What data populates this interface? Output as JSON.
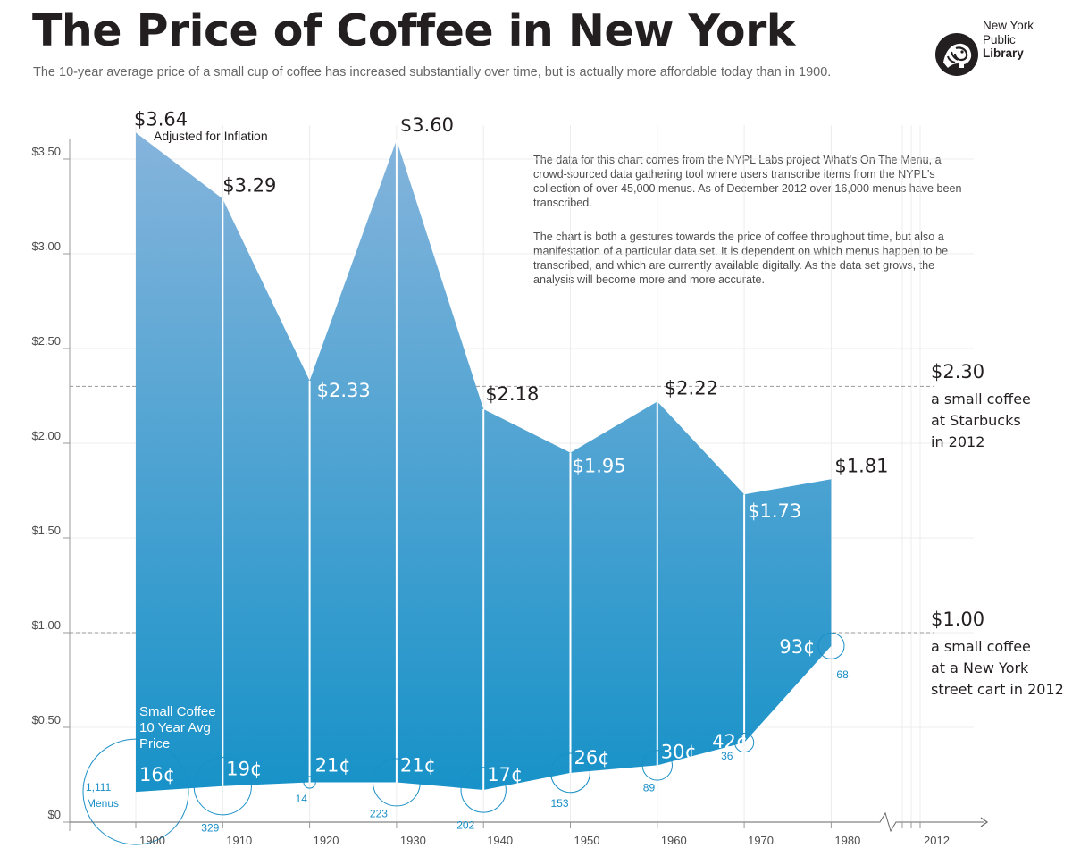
{
  "header": {
    "title": "The Price of Coffee in New York",
    "subtitle": "The 10-year average price of a small cup of coffee has increased substantially over time, but is actually more affordable today than in 1900."
  },
  "logo": {
    "line1": "New York",
    "line2": "Public",
    "line3": "Library",
    "icon": "lion-icon"
  },
  "notes": {
    "p1": "The data for this chart comes from the NYPL Labs project What's On The Menu, a crowd-sourced data gathering tool where users transcribe items from the NYPL's collection of over 45,000 menus. As of December 2012 over 16,000 menus have been transcribed.",
    "p2": "The chart is both a gestures towards the price of coffee throughout time, but also a manifestation of a particular data set. It is dependent on which menus happen to be transcribed, and which are currently available digitally. As the data set grows, the analysis will become more and more accurate."
  },
  "labels": {
    "adjusted": "Adjusted for Inflation",
    "small_coffee": [
      "Small Coffee",
      "10 Year Avg",
      "Price"
    ],
    "menus_suffix": "Menus"
  },
  "references": [
    {
      "value": 2.3,
      "price_label": "$2.30",
      "lines": [
        "a small coffee",
        "at Starbucks",
        "in 2012"
      ]
    },
    {
      "value": 1.0,
      "price_label": "$1.00",
      "lines": [
        "a small coffee",
        "at a New York",
        "street cart in 2012"
      ]
    }
  ],
  "colors": {
    "area_top": "#85b4dc",
    "area_bottom": "#1792c8",
    "circle": "#1a8fc6",
    "text": "#231f20"
  },
  "chart_data": {
    "type": "area",
    "x": [
      1900,
      1910,
      1920,
      1930,
      1940,
      1950,
      1960,
      1970,
      1980
    ],
    "x_ticks": [
      "1900",
      "1910",
      "1920",
      "1930",
      "1940",
      "1950",
      "1960",
      "1970",
      "1980",
      "2012"
    ],
    "y_ticks": [
      "$0",
      "$0.50",
      "$1.00",
      "$1.50",
      "$2.00",
      "$2.50",
      "$3.00",
      "$3.50"
    ],
    "ylim": [
      0,
      3.6
    ],
    "series": [
      {
        "name": "Adjusted for Inflation",
        "values": [
          3.64,
          3.29,
          2.33,
          3.6,
          2.18,
          1.95,
          2.22,
          1.73,
          1.81
        ],
        "labels": [
          "$3.64",
          "$3.29",
          "$2.33",
          "$3.60",
          "$2.18",
          "$1.95",
          "$2.22",
          "$1.73",
          "$1.81"
        ]
      },
      {
        "name": "Small Coffee 10 Year Avg Price",
        "values": [
          0.16,
          0.19,
          0.21,
          0.21,
          0.17,
          0.26,
          0.3,
          0.42,
          0.93
        ],
        "labels": [
          "16¢",
          "19¢",
          "21¢",
          "21¢",
          "17¢",
          "26¢",
          "30¢",
          "42¢",
          "93¢"
        ]
      }
    ],
    "menus": [
      1111,
      329,
      14,
      223,
      202,
      153,
      89,
      36,
      68
    ],
    "menus_labels": [
      "1,111",
      "329",
      "14",
      "223",
      "202",
      "153",
      "89",
      "36",
      "68"
    ],
    "grid": true
  }
}
